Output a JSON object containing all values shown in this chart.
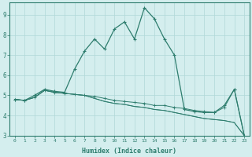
{
  "xlabel": "Humidex (Indice chaleur)",
  "x": [
    0,
    1,
    2,
    3,
    4,
    5,
    6,
    7,
    8,
    9,
    10,
    11,
    12,
    13,
    14,
    15,
    16,
    17,
    18,
    19,
    20,
    21,
    22,
    23
  ],
  "line_main": [
    4.8,
    4.75,
    5.0,
    5.3,
    5.2,
    5.15,
    6.3,
    7.2,
    7.8,
    7.3,
    8.3,
    8.65,
    7.8,
    9.35,
    8.8,
    7.8,
    7.0,
    4.3,
    4.2,
    4.15,
    4.15,
    4.5,
    5.3,
    3.0
  ],
  "line_flat1": [
    4.8,
    4.75,
    4.9,
    5.25,
    5.15,
    5.1,
    5.05,
    5.0,
    4.95,
    4.85,
    4.75,
    4.7,
    4.65,
    4.6,
    4.5,
    4.5,
    4.4,
    4.35,
    4.25,
    4.2,
    4.15,
    4.4,
    5.3,
    3.0
  ],
  "line_flat2": [
    4.8,
    4.75,
    4.9,
    5.25,
    5.15,
    5.1,
    5.05,
    5.0,
    4.85,
    4.7,
    4.6,
    4.55,
    4.45,
    4.4,
    4.3,
    4.25,
    4.15,
    4.05,
    3.95,
    3.85,
    3.8,
    3.75,
    3.65,
    3.0
  ],
  "line_flat3": [
    4.8,
    4.75,
    4.9,
    5.25,
    5.15,
    5.1,
    5.05,
    5.0,
    4.85,
    4.7,
    4.6,
    4.55,
    4.45,
    4.4,
    4.3,
    4.25,
    4.15,
    4.05,
    3.95,
    3.85,
    3.8,
    3.75,
    3.65,
    3.0
  ],
  "line_color": "#2e7d6e",
  "bg_color": "#d4eeee",
  "grid_color": "#b0d8d8",
  "ylim": [
    3,
    9.6
  ],
  "xlim": [
    -0.5,
    23.5
  ],
  "yticks": [
    3,
    4,
    5,
    6,
    7,
    8,
    9
  ],
  "xticks": [
    0,
    1,
    2,
    3,
    4,
    5,
    6,
    7,
    8,
    9,
    10,
    11,
    12,
    13,
    14,
    15,
    16,
    17,
    18,
    19,
    20,
    21,
    22,
    23
  ]
}
